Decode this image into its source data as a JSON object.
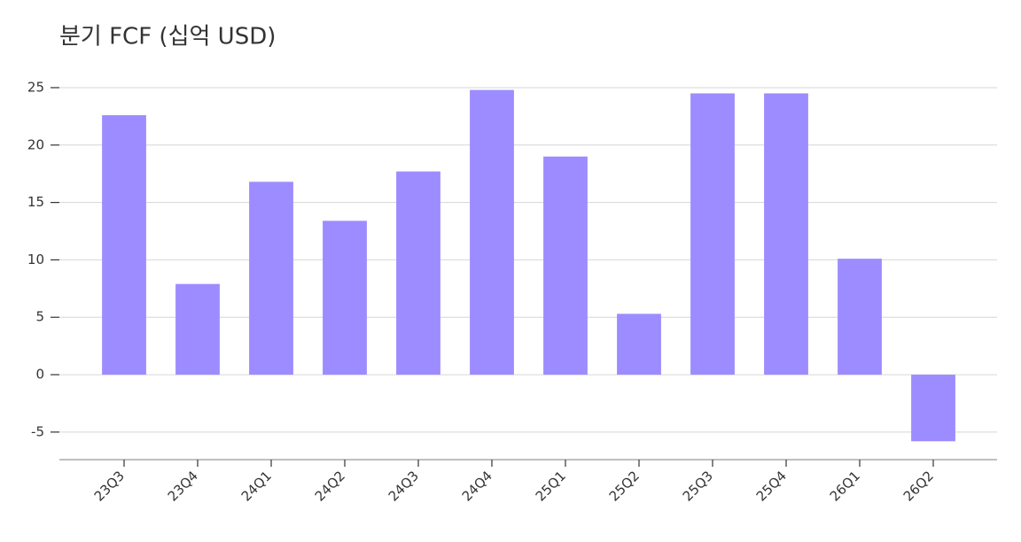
{
  "chart_data": {
    "type": "bar",
    "title": "분기 FCF (십억 USD)",
    "categories": [
      "23Q3",
      "23Q4",
      "24Q1",
      "24Q2",
      "24Q3",
      "24Q4",
      "25Q1",
      "25Q2",
      "25Q3",
      "25Q4",
      "26Q1",
      "26Q2"
    ],
    "values": [
      22.6,
      7.9,
      16.8,
      13.4,
      17.7,
      24.8,
      19.0,
      5.3,
      24.5,
      24.5,
      10.1,
      -5.8
    ],
    "color": "#9d8cff",
    "ylim": [
      -7.4,
      26
    ],
    "yticks": [
      -5,
      0,
      5,
      10,
      15,
      20,
      25
    ],
    "grid": true
  }
}
